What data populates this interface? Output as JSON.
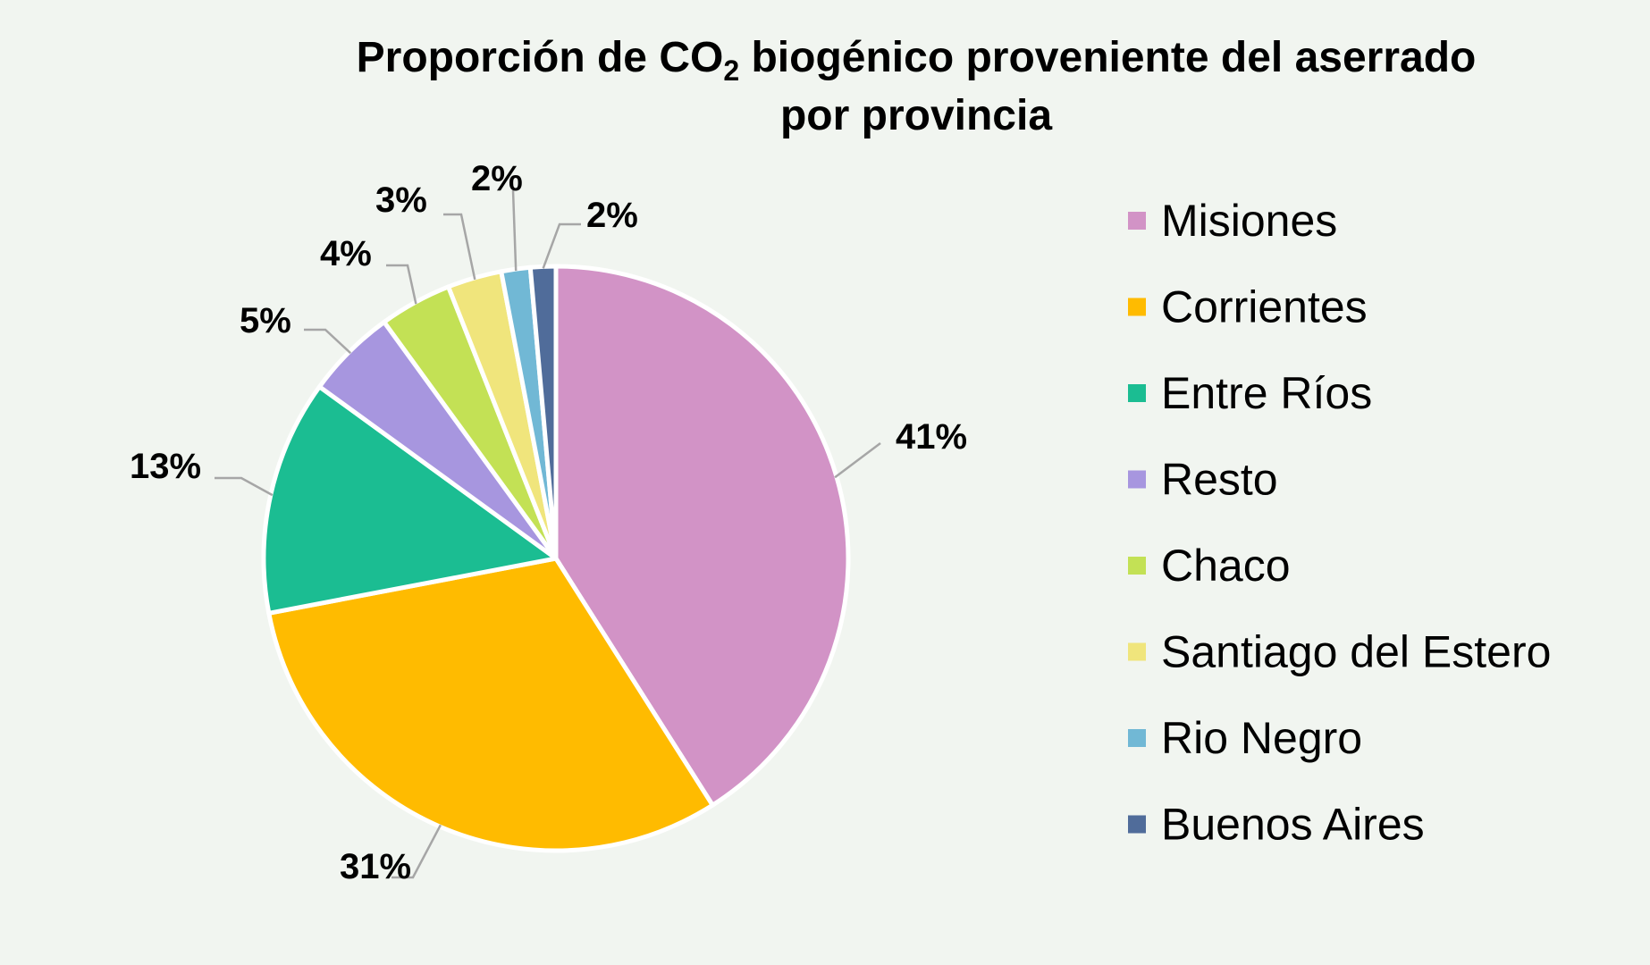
{
  "chart_data": {
    "type": "pie",
    "title_line1_part1": "Proporción de CO",
    "title_subscript": "2",
    "title_line1_part2": " biogénico proveniente del aserrado",
    "title_line2": "por provincia",
    "legend_position": "right",
    "slices": [
      {
        "name": "Misiones",
        "value": 41,
        "label": "41%",
        "color": "#d293c6"
      },
      {
        "name": "Corrientes",
        "value": 31,
        "label": "31%",
        "color": "#ffbb00"
      },
      {
        "name": "Entre Ríos",
        "value": 13,
        "label": "13%",
        "color": "#1bbd92"
      },
      {
        "name": "Resto",
        "value": 5,
        "label": "5%",
        "color": "#a796df"
      },
      {
        "name": "Chaco",
        "value": 4,
        "label": "4%",
        "color": "#c3e155"
      },
      {
        "name": "Santiago del Estero",
        "value": 3,
        "label": "3%",
        "color": "#f0e57c"
      },
      {
        "name": "Rio Negro",
        "value": 1.6,
        "label": "2%",
        "color": "#71b8d5"
      },
      {
        "name": "Buenos Aires",
        "value": 1.4,
        "label": "2%",
        "color": "#506c9a"
      }
    ]
  }
}
